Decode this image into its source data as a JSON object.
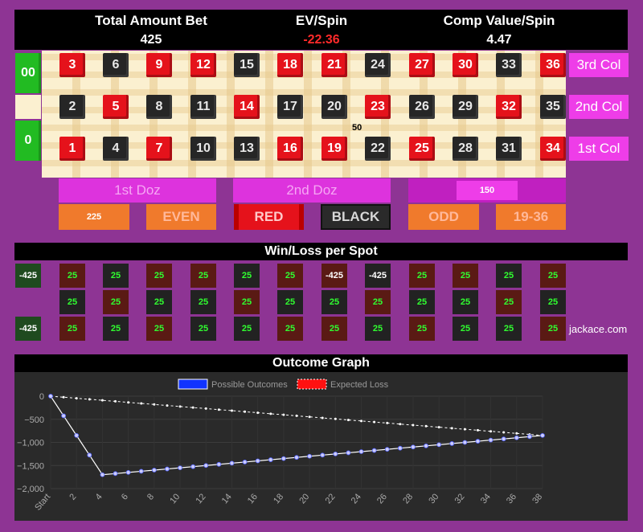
{
  "header": {
    "total_label": "Total Amount Bet",
    "total_value": "425",
    "ev_label": "EV/Spin",
    "ev_value": "-22.36",
    "comp_label": "Comp Value/Spin",
    "comp_value": "4.47"
  },
  "zeros": [
    "00",
    "",
    "0"
  ],
  "rows": [
    [
      {
        "n": "3",
        "c": "red"
      },
      {
        "n": "6",
        "c": "black"
      },
      {
        "n": "9",
        "c": "red"
      },
      {
        "n": "12",
        "c": "red"
      },
      {
        "n": "15",
        "c": "black"
      },
      {
        "n": "18",
        "c": "red"
      },
      {
        "n": "21",
        "c": "red"
      },
      {
        "n": "24",
        "c": "black"
      },
      {
        "n": "27",
        "c": "red"
      },
      {
        "n": "30",
        "c": "red"
      },
      {
        "n": "33",
        "c": "black"
      },
      {
        "n": "36",
        "c": "red"
      }
    ],
    [
      {
        "n": "2",
        "c": "black"
      },
      {
        "n": "5",
        "c": "red"
      },
      {
        "n": "8",
        "c": "black"
      },
      {
        "n": "11",
        "c": "black"
      },
      {
        "n": "14",
        "c": "red"
      },
      {
        "n": "17",
        "c": "black"
      },
      {
        "n": "20",
        "c": "black"
      },
      {
        "n": "23",
        "c": "red"
      },
      {
        "n": "26",
        "c": "black"
      },
      {
        "n": "29",
        "c": "black"
      },
      {
        "n": "32",
        "c": "red"
      },
      {
        "n": "35",
        "c": "black"
      }
    ],
    [
      {
        "n": "1",
        "c": "red"
      },
      {
        "n": "4",
        "c": "black"
      },
      {
        "n": "7",
        "c": "red"
      },
      {
        "n": "10",
        "c": "black"
      },
      {
        "n": "13",
        "c": "black"
      },
      {
        "n": "16",
        "c": "red"
      },
      {
        "n": "19",
        "c": "red"
      },
      {
        "n": "22",
        "c": "black"
      },
      {
        "n": "25",
        "c": "red"
      },
      {
        "n": "28",
        "c": "black"
      },
      {
        "n": "31",
        "c": "black"
      },
      {
        "n": "34",
        "c": "red"
      }
    ]
  ],
  "columns": [
    "3rd Col",
    "2nd Col",
    "1st Col"
  ],
  "board_chip": "50",
  "dozens": {
    "first": "1st Doz",
    "second": "2nd Doz",
    "third_chip": "150"
  },
  "outside": {
    "low_chip": "225",
    "even": "EVEN",
    "red": "RED",
    "black": "BLACK",
    "odd": "ODD",
    "high": "19-36"
  },
  "winloss": {
    "title": "Win/Loss per Spot",
    "zeros": [
      "-425",
      "",
      "-425"
    ],
    "rows": [
      [
        "25",
        "25",
        "25",
        "25",
        "25",
        "25",
        "-425",
        "-425",
        "25",
        "25",
        "25",
        "25"
      ],
      [
        "25",
        "25",
        "25",
        "25",
        "25",
        "25",
        "25",
        "25",
        "25",
        "25",
        "25",
        "25"
      ],
      [
        "25",
        "25",
        "25",
        "25",
        "25",
        "25",
        "25",
        "25",
        "25",
        "25",
        "25",
        "25"
      ]
    ],
    "credit": "jackace.com"
  },
  "graph": {
    "title": "Outcome Graph"
  },
  "chart_data": {
    "type": "line",
    "legend": [
      "Possible Outcomes",
      "Expected Loss"
    ],
    "x": [
      "Start",
      "1",
      "2",
      "3",
      "4",
      "5",
      "6",
      "7",
      "8",
      "9",
      "10",
      "11",
      "12",
      "13",
      "14",
      "15",
      "16",
      "17",
      "18",
      "19",
      "20",
      "21",
      "22",
      "23",
      "24",
      "25",
      "26",
      "27",
      "28",
      "29",
      "30",
      "31",
      "32",
      "33",
      "34",
      "35",
      "36",
      "37",
      "38"
    ],
    "xticks": [
      "Start",
      "2",
      "4",
      "6",
      "8",
      "10",
      "12",
      "14",
      "16",
      "18",
      "20",
      "22",
      "24",
      "26",
      "28",
      "30",
      "32",
      "34",
      "36",
      "38"
    ],
    "series": [
      {
        "name": "Possible Outcomes",
        "color": "#3355ff",
        "values": [
          0,
          -425,
          -850,
          -1275,
          -1700,
          -1675,
          -1650,
          -1625,
          -1600,
          -1575,
          -1550,
          -1525,
          -1500,
          -1475,
          -1450,
          -1425,
          -1400,
          -1375,
          -1350,
          -1325,
          -1300,
          -1275,
          -1250,
          -1225,
          -1200,
          -1175,
          -1150,
          -1125,
          -1100,
          -1075,
          -1050,
          -1025,
          -1000,
          -975,
          -950,
          -925,
          -900,
          -875,
          -850
        ]
      },
      {
        "name": "Expected Loss",
        "color": "#ff1111",
        "values": [
          0,
          -22.36,
          -44.72,
          -67.08,
          -89.44,
          -111.8,
          -134.16,
          -156.52,
          -178.88,
          -201.24,
          -223.6,
          -245.96,
          -268.32,
          -290.68,
          -313.04,
          -335.4,
          -357.76,
          -380.12,
          -402.48,
          -424.84,
          -447.2,
          -469.56,
          -491.92,
          -514.28,
          -536.64,
          -559,
          -581.36,
          -603.72,
          -626.08,
          -648.44,
          -670.8,
          -693.16,
          -715.52,
          -737.88,
          -760.24,
          -782.6,
          -804.96,
          -827.32,
          -849.68
        ]
      }
    ],
    "yticks": [
      0,
      -500,
      -1000,
      -1500,
      -2000
    ],
    "ytick_labels": [
      "0",
      "−500",
      "−1,000",
      "−1,500",
      "−2,000"
    ],
    "ylim": [
      -2000,
      0
    ]
  }
}
